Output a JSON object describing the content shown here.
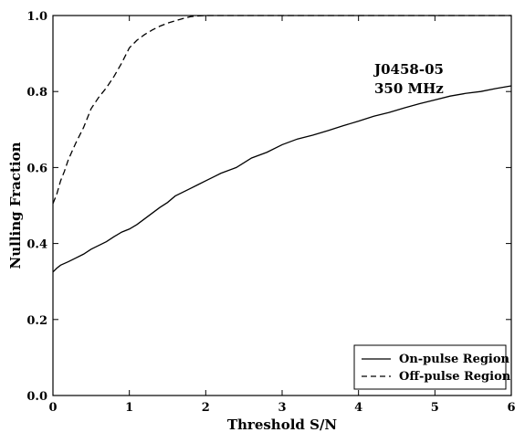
{
  "chart_data": {
    "type": "line",
    "xlabel": "Threshold S/N",
    "ylabel": "Nulling Fraction",
    "xlim": [
      0,
      6
    ],
    "ylim": [
      0,
      1.0
    ],
    "x_ticks": [
      "0",
      "1",
      "2",
      "3",
      "4",
      "5",
      "6"
    ],
    "y_ticks": [
      "0.0",
      "0.2",
      "0.4",
      "0.6",
      "0.8",
      "1.0"
    ],
    "annotation": [
      "J0458-05",
      "350 MHz"
    ],
    "legend_position": "bottom-right",
    "grid": false,
    "series": [
      {
        "name": "On-pulse Region",
        "line_style": "solid",
        "color": "#000000",
        "x": [
          0,
          0.05,
          0.1,
          0.2,
          0.3,
          0.4,
          0.5,
          0.6,
          0.7,
          0.8,
          0.9,
          1.0,
          1.1,
          1.2,
          1.3,
          1.4,
          1.5,
          1.6,
          1.7,
          1.8,
          1.9,
          2.0,
          2.1,
          2.2,
          2.4,
          2.6,
          2.8,
          3.0,
          3.2,
          3.4,
          3.6,
          3.8,
          4.0,
          4.2,
          4.4,
          4.6,
          4.8,
          5.0,
          5.2,
          5.4,
          5.6,
          5.8,
          6.0
        ],
        "y": [
          0.325,
          0.335,
          0.343,
          0.352,
          0.362,
          0.372,
          0.385,
          0.395,
          0.405,
          0.418,
          0.43,
          0.438,
          0.45,
          0.465,
          0.48,
          0.495,
          0.508,
          0.525,
          0.535,
          0.545,
          0.555,
          0.565,
          0.575,
          0.585,
          0.6,
          0.625,
          0.64,
          0.66,
          0.675,
          0.685,
          0.697,
          0.71,
          0.722,
          0.735,
          0.745,
          0.757,
          0.768,
          0.778,
          0.788,
          0.795,
          0.8,
          0.808,
          0.815
        ]
      },
      {
        "name": "Off-pulse Region",
        "line_style": "dashed",
        "color": "#000000",
        "x": [
          0,
          0.05,
          0.1,
          0.15,
          0.2,
          0.3,
          0.4,
          0.5,
          0.6,
          0.7,
          0.8,
          0.9,
          1.0,
          1.1,
          1.2,
          1.3,
          1.4,
          1.5,
          1.6,
          1.7,
          1.8,
          1.9,
          2.0,
          3.0,
          4.0,
          5.0,
          6.0
        ],
        "y": [
          0.505,
          0.53,
          0.565,
          0.59,
          0.62,
          0.665,
          0.705,
          0.755,
          0.785,
          0.81,
          0.84,
          0.875,
          0.915,
          0.935,
          0.95,
          0.962,
          0.972,
          0.98,
          0.986,
          0.992,
          0.997,
          0.999,
          1.0,
          1.0,
          1.0,
          1.0,
          1.0
        ]
      }
    ]
  }
}
